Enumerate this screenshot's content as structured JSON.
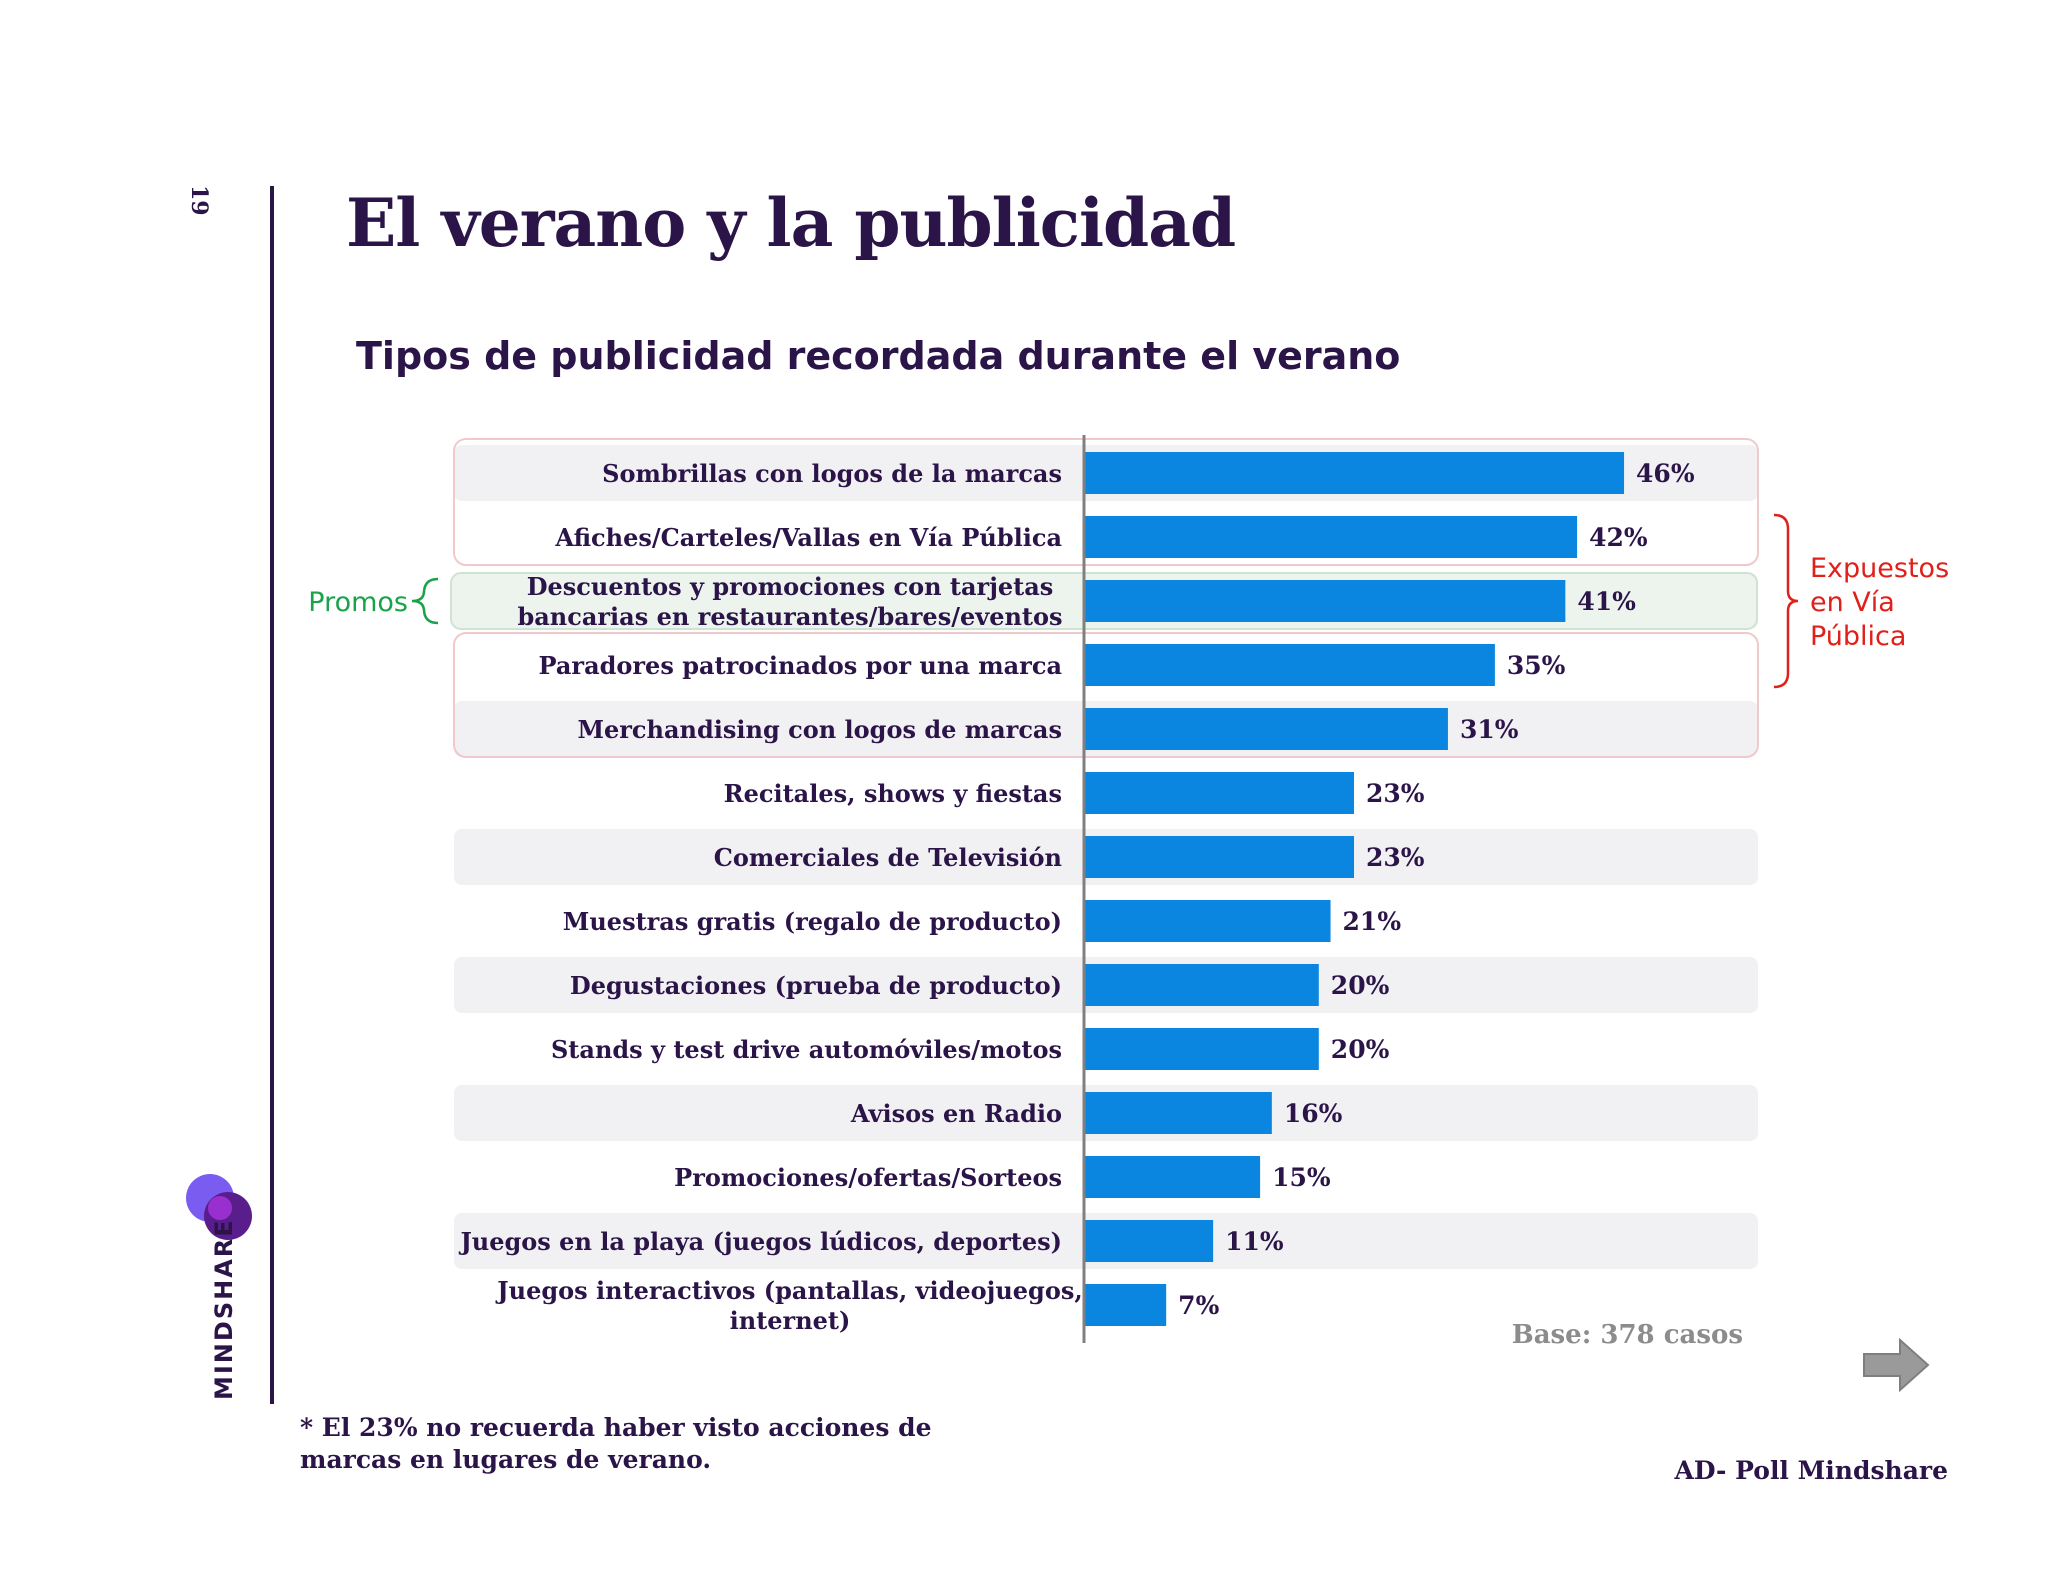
{
  "page_number": "19",
  "title": "El verano y la publicidad",
  "brand": "MINDSHARE",
  "chart_data": {
    "type": "bar",
    "orientation": "horizontal",
    "title": "Tipos de publicidad recordada durante el verano",
    "categories": [
      [
        "Sombrillas con logos de la marcas"
      ],
      [
        "Afiches/Carteles/Vallas en Vía Pública"
      ],
      [
        "Descuentos y promociones con tarjetas",
        "bancarias en restaurantes/bares/eventos"
      ],
      [
        "Paradores patrocinados por una marca"
      ],
      [
        "Merchandising con logos de marcas"
      ],
      [
        "Recitales, shows y fiestas"
      ],
      [
        "Comerciales de Televisión"
      ],
      [
        "Muestras gratis (regalo de producto)"
      ],
      [
        "Degustaciones (prueba de producto)"
      ],
      [
        "Stands y test drive automóviles/motos"
      ],
      [
        "Avisos en Radio"
      ],
      [
        "Promociones/ofertas/Sorteos"
      ],
      [
        "Juegos en la playa (juegos lúdicos, deportes)"
      ],
      [
        "Juegos interactivos (pantallas, videojuegos,",
        "internet)"
      ]
    ],
    "values": [
      46,
      42,
      41,
      35,
      31,
      23,
      23,
      21,
      20,
      20,
      16,
      15,
      11,
      7
    ],
    "value_labels": [
      "46%",
      "42%",
      "41%",
      "35%",
      "31%",
      "23%",
      "23%",
      "21%",
      "20%",
      "20%",
      "16%",
      "15%",
      "11%",
      "7%"
    ],
    "xlim": [
      0,
      55
    ],
    "bar_color": "#0a86e0",
    "annotations": [
      {
        "label": [
          "Promos"
        ],
        "rows": [
          2
        ],
        "side": "left",
        "color": "#1aa34a"
      },
      {
        "label": [
          "Expuestos",
          "en Vía",
          "Pública"
        ],
        "rows": [
          1,
          2,
          3
        ],
        "side": "right",
        "color": "#e0201b"
      }
    ]
  },
  "base_note": "Base: 378 casos",
  "footnote": "* El 23% no recuerda haber visto acciones de marcas en lugares de verano.",
  "source": "AD- Poll Mindshare"
}
